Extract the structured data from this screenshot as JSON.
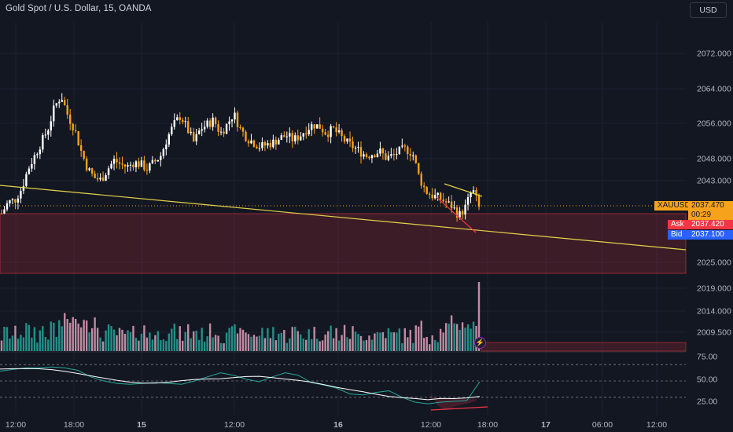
{
  "header": {
    "title": "Gold Spot / U.S. Dollar, 15, OANDA",
    "currency": "USD"
  },
  "price_tags": {
    "symbol": "XAUUSD",
    "last": "2037.470",
    "countdown": "00:29",
    "ask_label": "Ask",
    "ask": "2037.420",
    "bid_label": "Bid",
    "bid": "2037.100"
  },
  "icons": {
    "alert": "lightning-icon"
  },
  "colors": {
    "background": "#131722",
    "candle_up": "#ffffff",
    "candle_down": "#f7a21b",
    "zone": "#f23645",
    "trendline": "#e6d34a",
    "volume_up": "#26a69a",
    "volume_down": "#e0a0b8",
    "rsi_line": "#26a69a",
    "rsi_ma": "#ffffff"
  },
  "chart_data": {
    "type": "candlestick",
    "price_axis": {
      "ticks": [
        "2072.000",
        "2064.000",
        "2056.000",
        "2048.000",
        "2043.000",
        "2025.000",
        "2019.000",
        "2014.000",
        "2009.500"
      ]
    },
    "rsi_axis": {
      "ticks": [
        "75.00",
        "50.00",
        "25.00"
      ]
    },
    "time_axis": {
      "ticks": [
        "12:00",
        "18:00",
        "15",
        "12:00",
        "16",
        "12:00",
        "18:00",
        "17",
        "06:00",
        "12:00"
      ]
    },
    "close_series": [
      2036.0,
      2038.5,
      2039.0,
      2041.5,
      2046.0,
      2049.0,
      2052.0,
      2055.0,
      2060.0,
      2062.5,
      2058.0,
      2055.0,
      2050.0,
      2046.0,
      2044.0,
      2043.5,
      2046.0,
      2048.0,
      2047.0,
      2046.5,
      2047.5,
      2047.0,
      2046.0,
      2047.5,
      2049.0,
      2053.0,
      2056.0,
      2058.0,
      2055.0,
      2052.0,
      2055.0,
      2056.0,
      2057.0,
      2054.0,
      2056.0,
      2058.5,
      2055.0,
      2053.0,
      2052.0,
      2051.0,
      2051.5,
      2052.0,
      2053.0,
      2053.5,
      2052.5,
      2053.5,
      2055.0,
      2056.0,
      2055.5,
      2054.0,
      2055.0,
      2053.5,
      2052.0,
      2051.0,
      2050.0,
      2049.0,
      2049.5,
      2050.0,
      2048.5,
      2049.0,
      2050.0,
      2050.5,
      2049.5,
      2044.0,
      2041.0,
      2040.0,
      2039.5,
      2038.5,
      2037.5,
      2035.5,
      2037.5,
      2041.5,
      2037.47
    ],
    "resistance_zone": {
      "from": 2024.5,
      "to": 2035.0
    },
    "trendline": {
      "from": 2041.0,
      "to": 2025.5
    },
    "rsi_levels": [
      70,
      50,
      30
    ],
    "rsi_values": [
      62,
      64,
      66,
      66,
      67,
      66,
      63,
      55,
      50,
      47,
      46,
      47,
      48,
      47,
      46,
      50,
      55,
      60,
      57,
      52,
      49,
      55,
      60,
      57,
      48,
      45,
      41,
      34,
      33,
      36,
      38,
      30,
      24,
      22,
      24,
      25,
      26,
      49
    ]
  }
}
